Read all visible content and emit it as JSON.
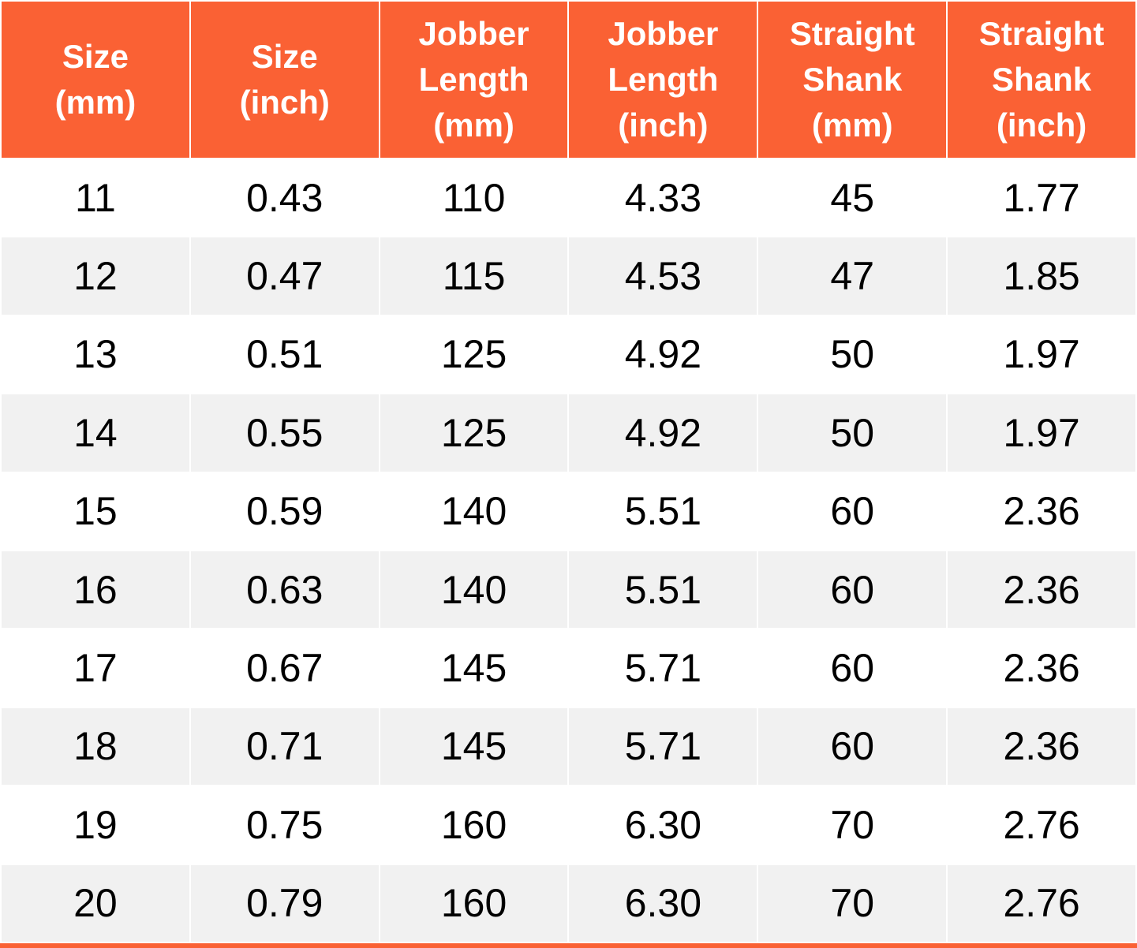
{
  "colors": {
    "header_bg": "#fa6134",
    "header_text": "#ffffff",
    "row_bg": "#ffffff",
    "row_alt_bg": "#f1f1f1",
    "grid_line": "#ffffff",
    "cell_text": "#000000",
    "accent_bar": "#fa6134"
  },
  "table": {
    "headers_display": [
      "Size\n(mm)",
      "Size\n(inch)",
      "Jobber\nLength\n(mm)",
      "Jobber\nLength\n(inch)",
      "Straight\nShank\n(mm)",
      "Straight\nShank\n(inch)"
    ]
  },
  "chart_data": {
    "type": "table",
    "columns": [
      "Size (mm)",
      "Size (inch)",
      "Jobber Length (mm)",
      "Jobber Length (inch)",
      "Straight Shank (mm)",
      "Straight Shank (inch)"
    ],
    "rows": [
      [
        "11",
        "0.43",
        "110",
        "4.33",
        "45",
        "1.77"
      ],
      [
        "12",
        "0.47",
        "115",
        "4.53",
        "47",
        "1.85"
      ],
      [
        "13",
        "0.51",
        "125",
        "4.92",
        "50",
        "1.97"
      ],
      [
        "14",
        "0.55",
        "125",
        "4.92",
        "50",
        "1.97"
      ],
      [
        "15",
        "0.59",
        "140",
        "5.51",
        "60",
        "2.36"
      ],
      [
        "16",
        "0.63",
        "140",
        "5.51",
        "60",
        "2.36"
      ],
      [
        "17",
        "0.67",
        "145",
        "5.71",
        "60",
        "2.36"
      ],
      [
        "18",
        "0.71",
        "145",
        "5.71",
        "60",
        "2.36"
      ],
      [
        "19",
        "0.75",
        "160",
        "6.30",
        "70",
        "2.76"
      ],
      [
        "20",
        "0.79",
        "160",
        "6.30",
        "70",
        "2.76"
      ]
    ]
  }
}
